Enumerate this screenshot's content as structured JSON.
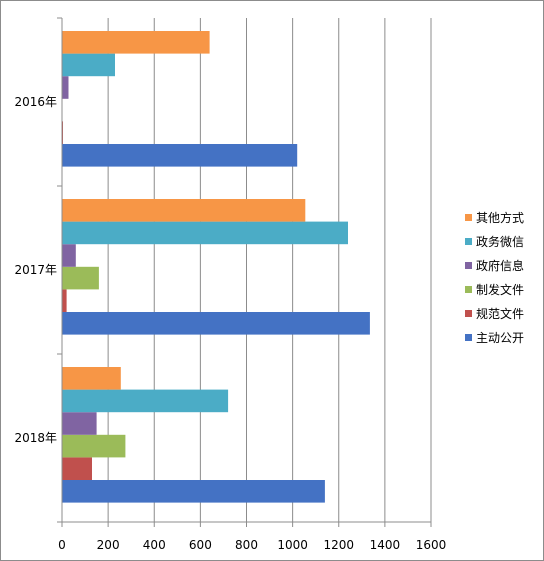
{
  "chart_data": {
    "type": "bar",
    "orientation": "horizontal",
    "categories": [
      "2016年",
      "2017年",
      "2018年"
    ],
    "series": [
      {
        "name": "主动公开",
        "color": "#4472c4",
        "values": [
          1020,
          1335,
          1140
        ]
      },
      {
        "name": "规范文件",
        "color": "#c0504d",
        "values": [
          3,
          20,
          130
        ]
      },
      {
        "name": "制发文件",
        "color": "#9bbb59",
        "values": [
          0,
          160,
          275
        ]
      },
      {
        "name": "政府信息",
        "color": "#8064a2",
        "values": [
          28,
          60,
          150
        ]
      },
      {
        "name": "政务微信",
        "color": "#4bacc6",
        "values": [
          230,
          1240,
          720
        ]
      },
      {
        "name": "其他方式",
        "color": "#f79646",
        "values": [
          640,
          1055,
          255
        ]
      }
    ],
    "legend_order": [
      "其他方式",
      "政务微信",
      "政府信息",
      "制发文件",
      "规范文件",
      "主动公开"
    ],
    "xlim": [
      0,
      1600
    ],
    "xticks": [
      "0",
      "200",
      "400",
      "600",
      "800",
      "1000",
      "1200",
      "1400",
      "1600"
    ],
    "grid": "vertical",
    "legend_position": "right"
  }
}
